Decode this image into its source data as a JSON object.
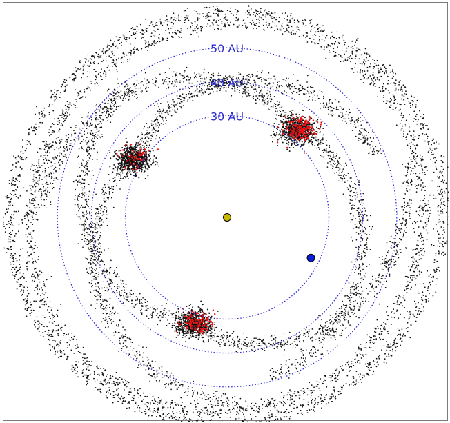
{
  "chart_data": {
    "type": "scatter",
    "title": "",
    "xlabel": "",
    "ylabel": "",
    "axes_visible": false,
    "grid": false,
    "legend": "none",
    "units": "AU",
    "xlim": [
      -58,
      58
    ],
    "ylim": [
      -58,
      58
    ],
    "center_body": {
      "name": "",
      "x": 0,
      "y": 0,
      "color": "#c8b800"
    },
    "planet": {
      "name": "",
      "x": 21.5,
      "y": -10.4,
      "radius_au": 23.9,
      "color": "#0a1fd8"
    },
    "reference_circles": [
      {
        "radius": 30,
        "label": "30 AU"
      },
      {
        "radius": 40,
        "label": "40 AU"
      },
      {
        "radius": 50,
        "label": "50 AU"
      }
    ],
    "particle_colors": {
      "background": "#111111",
      "highlight": "#ee1111"
    },
    "clumps": [
      {
        "x": 17.8,
        "y": 22.2,
        "radius_au": 28.5,
        "angle_deg": 51.3,
        "highlight_share": 0.45
      },
      {
        "x": -23.9,
        "y": 14.8,
        "radius_au": 28.1,
        "angle_deg": 148.2,
        "highlight_share": 0.15
      },
      {
        "x": -8.6,
        "y": -27.3,
        "radius_au": 28.6,
        "angle_deg": 252.5,
        "highlight_share": 0.3
      }
    ],
    "outer_rings_au": [
      50.5,
      54.5
    ]
  },
  "colors": {
    "circle_line": "#2a2ad8",
    "label_text": "#2a2acc",
    "frame": "#7a7a7a"
  }
}
